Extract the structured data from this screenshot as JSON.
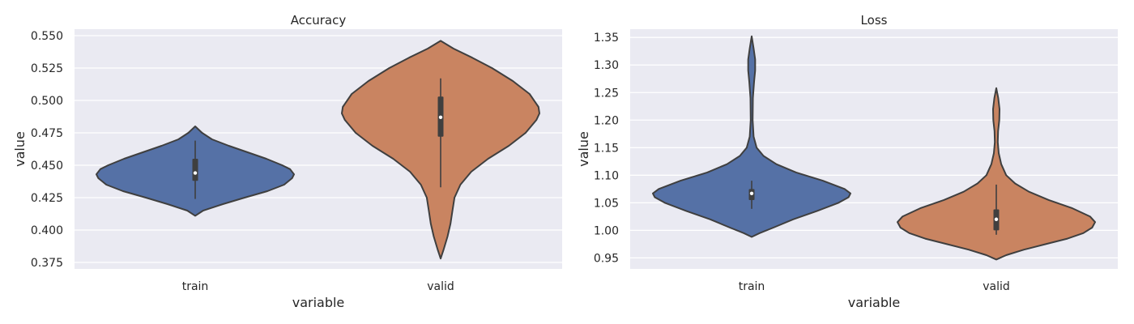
{
  "chart_data": [
    {
      "type": "violin",
      "title": "Accuracy",
      "xlabel": "variable",
      "ylabel": "value",
      "categories": [
        "train",
        "valid"
      ],
      "ylim": [
        0.37,
        0.555
      ],
      "yticks": [
        0.375,
        0.4,
        0.425,
        0.45,
        0.475,
        0.5,
        0.525,
        0.55
      ],
      "ytick_labels": [
        "0.375",
        "0.400",
        "0.425",
        "0.450",
        "0.475",
        "0.500",
        "0.525",
        "0.550"
      ],
      "grid": true,
      "violins": [
        {
          "category": "train",
          "color": "#5571a6",
          "min": 0.411,
          "max": 0.48,
          "whisker_low": 0.424,
          "q1": 0.438,
          "median": 0.444,
          "q3": 0.455,
          "whisker_high": 0.469,
          "profile": [
            [
              0.411,
              0.0
            ],
            [
              0.415,
              0.08
            ],
            [
              0.42,
              0.28
            ],
            [
              0.425,
              0.5
            ],
            [
              0.43,
              0.73
            ],
            [
              0.435,
              0.9
            ],
            [
              0.44,
              0.98
            ],
            [
              0.443,
              1.0
            ],
            [
              0.447,
              0.96
            ],
            [
              0.45,
              0.88
            ],
            [
              0.455,
              0.72
            ],
            [
              0.46,
              0.53
            ],
            [
              0.465,
              0.34
            ],
            [
              0.47,
              0.17
            ],
            [
              0.475,
              0.07
            ],
            [
              0.48,
              0.0
            ]
          ]
        },
        {
          "category": "valid",
          "color": "#c98461",
          "min": 0.378,
          "max": 0.546,
          "whisker_low": 0.433,
          "q1": 0.472,
          "median": 0.487,
          "q3": 0.503,
          "whisker_high": 0.517,
          "profile": [
            [
              0.378,
              0.0
            ],
            [
              0.385,
              0.03
            ],
            [
              0.395,
              0.07
            ],
            [
              0.405,
              0.1
            ],
            [
              0.415,
              0.12
            ],
            [
              0.425,
              0.14
            ],
            [
              0.435,
              0.2
            ],
            [
              0.445,
              0.31
            ],
            [
              0.455,
              0.48
            ],
            [
              0.465,
              0.69
            ],
            [
              0.475,
              0.86
            ],
            [
              0.485,
              0.97
            ],
            [
              0.49,
              1.0
            ],
            [
              0.495,
              0.99
            ],
            [
              0.505,
              0.9
            ],
            [
              0.515,
              0.73
            ],
            [
              0.525,
              0.52
            ],
            [
              0.533,
              0.32
            ],
            [
              0.54,
              0.13
            ],
            [
              0.546,
              0.0
            ]
          ]
        }
      ]
    },
    {
      "type": "violin",
      "title": "Loss",
      "xlabel": "variable",
      "ylabel": "value",
      "categories": [
        "train",
        "valid"
      ],
      "ylim": [
        0.93,
        1.365
      ],
      "yticks": [
        0.95,
        1.0,
        1.05,
        1.1,
        1.15,
        1.2,
        1.25,
        1.3,
        1.35
      ],
      "ytick_labels": [
        "0.95",
        "1.00",
        "1.05",
        "1.10",
        "1.15",
        "1.20",
        "1.25",
        "1.30",
        "1.35"
      ],
      "grid": true,
      "violins": [
        {
          "category": "train",
          "color": "#5571a6",
          "min": 0.988,
          "max": 1.352,
          "whisker_low": 1.039,
          "q1": 1.055,
          "median": 1.067,
          "q3": 1.075,
          "whisker_high": 1.09,
          "profile": [
            [
              0.988,
              0.0
            ],
            [
              0.995,
              0.08
            ],
            [
              1.005,
              0.22
            ],
            [
              1.02,
              0.42
            ],
            [
              1.035,
              0.66
            ],
            [
              1.05,
              0.88
            ],
            [
              1.06,
              0.98
            ],
            [
              1.067,
              1.0
            ],
            [
              1.075,
              0.94
            ],
            [
              1.09,
              0.72
            ],
            [
              1.105,
              0.45
            ],
            [
              1.12,
              0.25
            ],
            [
              1.135,
              0.12
            ],
            [
              1.15,
              0.05
            ],
            [
              1.17,
              0.02
            ],
            [
              1.2,
              0.01
            ],
            [
              1.24,
              0.012
            ],
            [
              1.27,
              0.025
            ],
            [
              1.29,
              0.035
            ],
            [
              1.31,
              0.035
            ],
            [
              1.33,
              0.02
            ],
            [
              1.352,
              0.0
            ]
          ]
        },
        {
          "category": "valid",
          "color": "#c98461",
          "min": 0.947,
          "max": 1.258,
          "whisker_low": 0.992,
          "q1": 1.0,
          "median": 1.02,
          "q3": 1.038,
          "whisker_high": 1.083,
          "profile": [
            [
              0.947,
              0.0
            ],
            [
              0.955,
              0.1
            ],
            [
              0.965,
              0.28
            ],
            [
              0.975,
              0.5
            ],
            [
              0.985,
              0.72
            ],
            [
              0.995,
              0.88
            ],
            [
              1.005,
              0.97
            ],
            [
              1.015,
              1.0
            ],
            [
              1.025,
              0.95
            ],
            [
              1.04,
              0.77
            ],
            [
              1.055,
              0.53
            ],
            [
              1.07,
              0.33
            ],
            [
              1.085,
              0.19
            ],
            [
              1.1,
              0.1
            ],
            [
              1.12,
              0.05
            ],
            [
              1.14,
              0.025
            ],
            [
              1.16,
              0.015
            ],
            [
              1.18,
              0.018
            ],
            [
              1.2,
              0.03
            ],
            [
              1.22,
              0.033
            ],
            [
              1.24,
              0.02
            ],
            [
              1.258,
              0.0
            ]
          ]
        }
      ]
    }
  ]
}
